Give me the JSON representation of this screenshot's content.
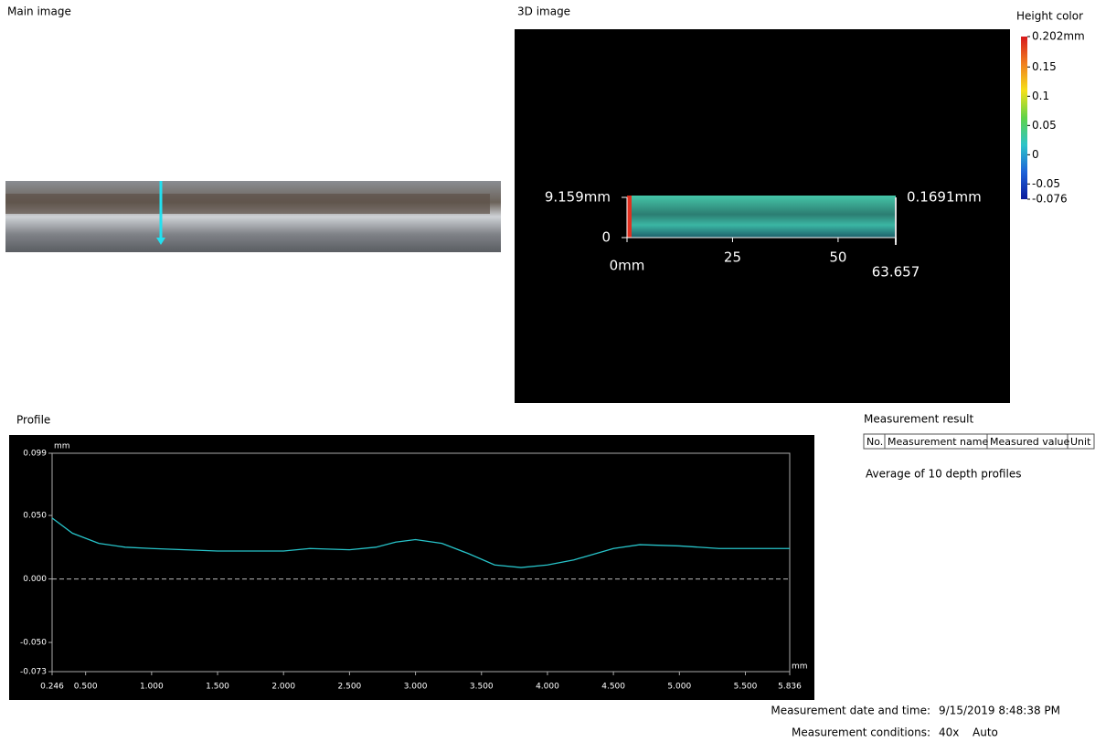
{
  "main_image": {
    "title": "Main image"
  },
  "image_3d": {
    "title": "3D image",
    "xlim": [
      0,
      63.657
    ],
    "xticks": [
      {
        "value": 0,
        "label": "0mm"
      },
      25,
      50,
      63.657
    ],
    "ylim": [
      0,
      9.159
    ],
    "yticks": [
      0,
      {
        "value": 9.159,
        "label": "9.159mm"
      }
    ],
    "height_label": "0.1691mm"
  },
  "height_color": {
    "title": "Height color",
    "lim": [
      -0.076,
      0.202
    ],
    "ticks": [
      {
        "value": 0.202,
        "label": "0.202mm"
      },
      0.15,
      0.1,
      0.05,
      0,
      -0.05,
      -0.076
    ],
    "colors": [
      "#d7191c",
      "#f07f20",
      "#f5e11b",
      "#5fd34a",
      "#2ec4c9",
      "#1e63d8",
      "#0a1a9c"
    ]
  },
  "chart_data": {
    "type": "line",
    "title": "Profile",
    "x": [
      0.246,
      0.4,
      0.6,
      0.8,
      1.0,
      1.5,
      2.0,
      2.2,
      2.5,
      2.7,
      2.85,
      3.0,
      3.2,
      3.4,
      3.6,
      3.8,
      4.0,
      4.2,
      4.5,
      4.7,
      5.0,
      5.3,
      5.836
    ],
    "values": [
      0.048,
      0.036,
      0.028,
      0.025,
      0.024,
      0.022,
      0.022,
      0.024,
      0.023,
      0.025,
      0.029,
      0.031,
      0.028,
      0.02,
      0.011,
      0.009,
      0.011,
      0.015,
      0.024,
      0.027,
      0.026,
      0.024,
      0.024
    ],
    "color": "#27c3c9",
    "xlim": [
      0.246,
      5.836
    ],
    "ylim": [
      -0.073,
      0.099
    ],
    "xticks": [
      0.246,
      {
        "value": 0.5,
        "label": "0.500"
      },
      {
        "value": 1,
        "label": "1.000"
      },
      {
        "value": 1.5,
        "label": "1.500"
      },
      {
        "value": 2,
        "label": "2.000"
      },
      {
        "value": 2.5,
        "label": "2.500"
      },
      {
        "value": 3,
        "label": "3.000"
      },
      {
        "value": 3.5,
        "label": "3.500"
      },
      {
        "value": 4,
        "label": "4.000"
      },
      {
        "value": 4.5,
        "label": "4.500"
      },
      {
        "value": 5,
        "label": "5.000"
      },
      {
        "value": 5.5,
        "label": "5.500"
      },
      5.836
    ],
    "yticks": [
      0.099,
      {
        "value": 0.05,
        "label": "0.050"
      },
      {
        "value": 0,
        "label": "0.000"
      },
      {
        "value": -0.05,
        "label": "-0.050"
      },
      -0.073
    ],
    "x_unit": "mm",
    "y_unit": "mm"
  },
  "measurement_result": {
    "title": "Measurement result",
    "columns": [
      "No.",
      "Measurement name",
      "Measured value",
      "Unit"
    ],
    "note": "Average of 10 depth profiles"
  },
  "footer": {
    "date_label": "Measurement date and time:",
    "date": "9/15/2019 8:48:38 PM",
    "conditions_label": "Measurement conditions:",
    "conditions": [
      "40x",
      "Auto"
    ]
  }
}
